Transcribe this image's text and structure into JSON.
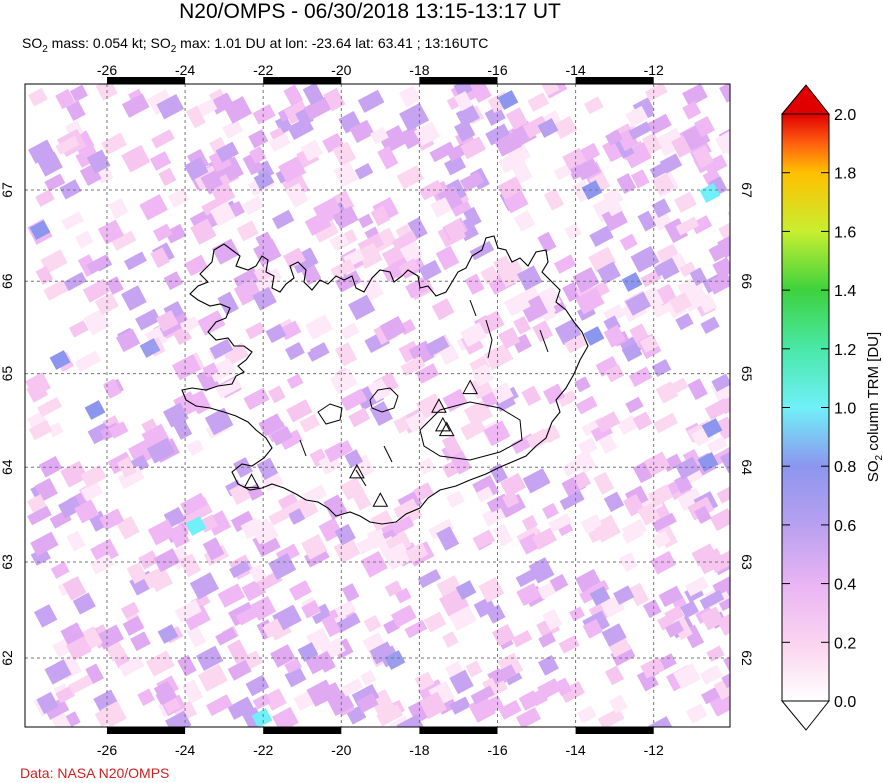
{
  "title": "N20/OMPS - 06/30/2018 13:15-13:17 UT",
  "subtitle_parts": {
    "p1": "SO",
    "sub1": "2",
    "p2": " mass: 0.054 kt; SO",
    "sub2": "2",
    "p3": " max: 1.01 DU at lon: -23.64 lat: 63.41 ; 13:16UTC"
  },
  "credit": "Data: NASA N20/OMPS",
  "map": {
    "lon_range": [
      -28,
      -9.5
    ],
    "lat_range": [
      61.15,
      68.05
    ],
    "lon_ticks": [
      -26,
      -24,
      -22,
      -20,
      -18,
      -16,
      -14,
      -12
    ],
    "lat_ticks": [
      62,
      63,
      64,
      65,
      66,
      67
    ],
    "lon_labels": [
      "-26",
      "-24",
      "-22",
      "-20",
      "-18",
      "-16",
      "-14",
      "-12"
    ],
    "lat_labels": [
      "62",
      "63",
      "64",
      "65",
      "66",
      "67"
    ],
    "volcanoes": [
      {
        "lon": -22.3,
        "lat": 63.85
      },
      {
        "lon": -19.6,
        "lat": 63.95
      },
      {
        "lon": -19.0,
        "lat": 63.65
      },
      {
        "lon": -17.5,
        "lat": 64.65
      },
      {
        "lon": -17.3,
        "lat": 64.4
      },
      {
        "lon": -16.7,
        "lat": 64.85
      },
      {
        "lon": -17.4,
        "lat": 64.45
      }
    ]
  },
  "colorbar": {
    "label": "SO2 column TRM [DU]",
    "label_parts": {
      "p1": "SO",
      "sub": "2",
      "p2": " column TRM [DU]"
    },
    "min": 0.0,
    "max": 2.0,
    "ticks": [
      "0.0",
      "0.2",
      "0.4",
      "0.6",
      "0.8",
      "1.0",
      "1.2",
      "1.4",
      "1.6",
      "1.8",
      "2.0"
    ],
    "colors": [
      "#ffffff",
      "#fbd7f0",
      "#e9b4f4",
      "#b8a0f0",
      "#8c96ee",
      "#70f0f8",
      "#4ae8a8",
      "#3ed23e",
      "#c8ef30",
      "#ffc000",
      "#ff6010",
      "#e00000"
    ]
  },
  "chart_data": {
    "type": "heatmap",
    "title": "N20/OMPS - 06/30/2018 13:15-13:17 UT",
    "variable": "SO2 column TRM [DU]",
    "so2_mass_kt": 0.054,
    "so2_max_DU": 1.01,
    "max_lon": -23.64,
    "max_lat": 63.41,
    "max_time": "13:16UTC",
    "value_range": [
      0.0,
      2.0
    ]
  }
}
